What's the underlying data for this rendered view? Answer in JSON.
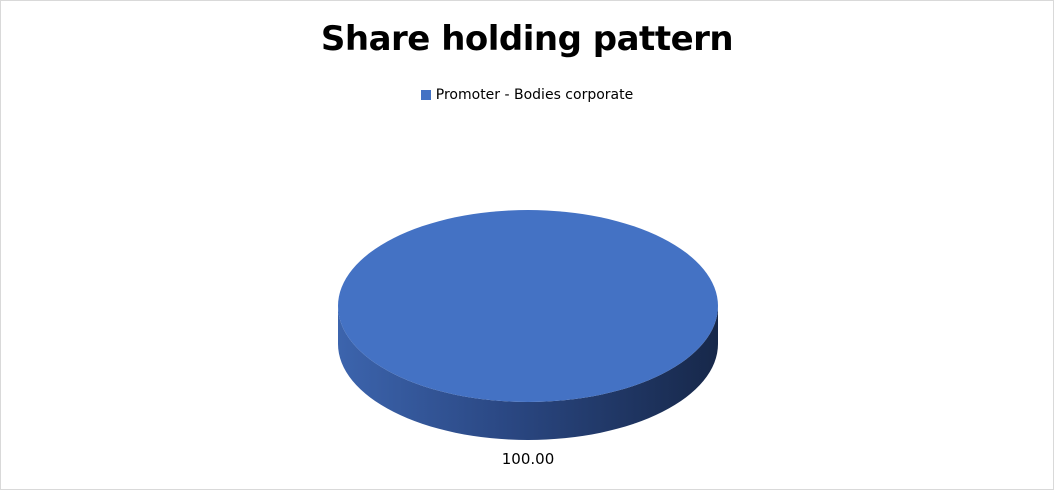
{
  "chart_data": {
    "type": "pie",
    "style": "3d",
    "title": "Share holding pattern",
    "legend_position": "top",
    "series": [
      {
        "name": "Promoter - Bodies corporate",
        "value": 100.0,
        "label": "100.00",
        "color": "#4472c4"
      }
    ]
  }
}
